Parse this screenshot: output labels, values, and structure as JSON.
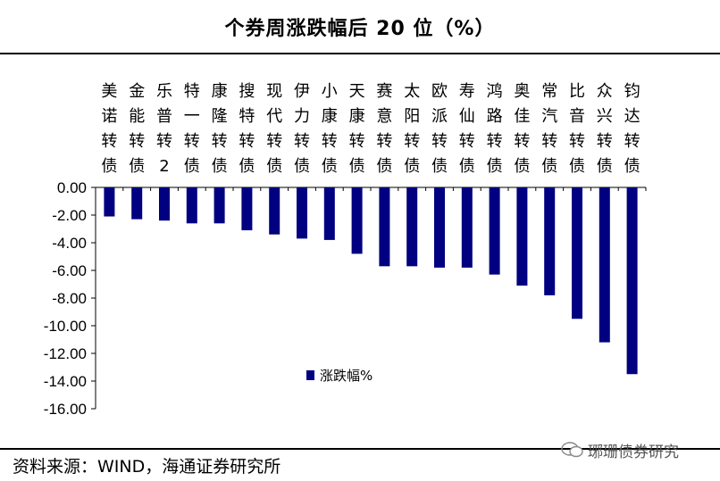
{
  "header": {
    "title": "个券周涨跌幅后 20 位（%）"
  },
  "footer": {
    "source": "资料来源：WIND，海通证券研究所",
    "watermark": "琊珊债券研究"
  },
  "colors": {
    "bar": "#000080",
    "axis": "#000000"
  },
  "chart_data": {
    "type": "bar",
    "title": "个券周涨跌幅后 20 位（%）",
    "xlabel": "",
    "ylabel": "",
    "categories": [
      "美诺转债",
      "金能转债",
      "乐普转2",
      "特一转债",
      "康隆转债",
      "搜特转债",
      "现代转债",
      "伊力转债",
      "小康转债",
      "天康转债",
      "赛意转债",
      "太阳转债",
      "欧派转债",
      "寿仙转债",
      "鸿路转债",
      "奥佳转债",
      "常汽转债",
      "比音转债",
      "众兴转债",
      "钧达转债"
    ],
    "series": [
      {
        "name": "涨跌幅%",
        "values": [
          -2.1,
          -2.3,
          -2.4,
          -2.6,
          -2.6,
          -3.1,
          -3.4,
          -3.7,
          -3.8,
          -4.8,
          -5.7,
          -5.7,
          -5.8,
          -5.8,
          -6.3,
          -7.1,
          -7.8,
          -9.5,
          -11.2,
          -13.5
        ]
      }
    ],
    "ylim": [
      -16,
      0
    ],
    "yticks": [
      "0.00",
      "-2.00",
      "-4.00",
      "-6.00",
      "-8.00",
      "-10.00",
      "-12.00",
      "-14.00",
      "-16.00"
    ],
    "ytick_values": [
      0,
      -2,
      -4,
      -6,
      -8,
      -10,
      -12,
      -14,
      -16
    ],
    "grid": false,
    "legend": "center"
  }
}
